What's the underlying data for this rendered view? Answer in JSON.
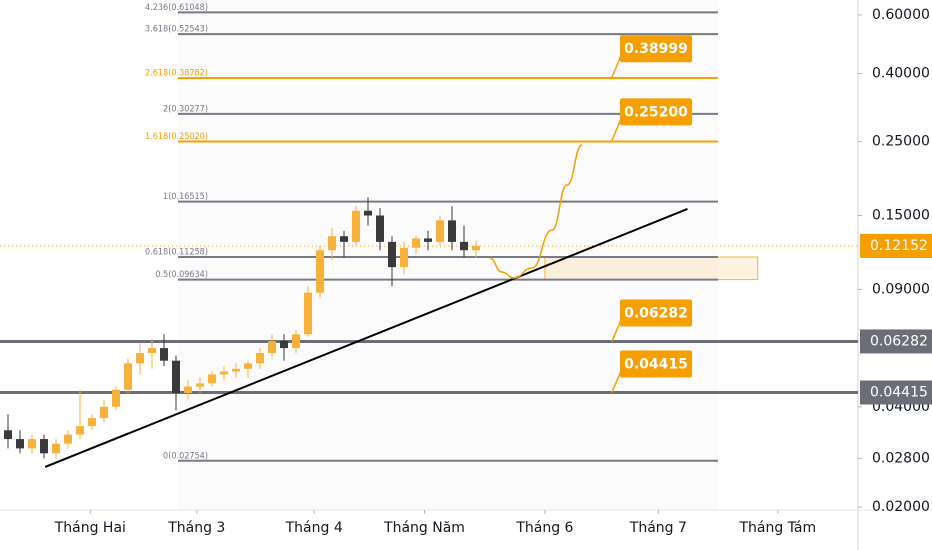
{
  "chart_data": {
    "type": "candlestick",
    "yscale": "log",
    "xlim": [
      -0.67,
      70.58
    ],
    "ylim": [
      0.0196,
      0.665
    ],
    "xticks": [
      {
        "value": 6.83,
        "label": "Tháng Hai"
      },
      {
        "value": 15.67,
        "label": "Tháng 3"
      },
      {
        "value": 25.42,
        "label": "Tháng 4"
      },
      {
        "value": 34.58,
        "label": "Tháng Năm"
      },
      {
        "value": 44.58,
        "label": "Tháng 6"
      },
      {
        "value": 54,
        "label": "Tháng 7"
      },
      {
        "value": 63.92,
        "label": "Tháng Tám"
      }
    ],
    "yticks": [
      {
        "value": 0.6,
        "label": "0.60000"
      },
      {
        "value": 0.4,
        "label": "0.40000"
      },
      {
        "value": 0.25,
        "label": "0.25000"
      },
      {
        "value": 0.15,
        "label": "0.15000"
      },
      {
        "value": 0.09,
        "label": "0.09000"
      },
      {
        "value": 0.04,
        "label": "0.04000"
      },
      {
        "value": 0.028,
        "label": "0.02800"
      },
      {
        "value": 0.02,
        "label": "0.02000"
      }
    ],
    "up_color": "#f7b23b",
    "down_color": "#3a3a3a",
    "candles": {
      "open": [
        0.034,
        0.032,
        0.03,
        0.032,
        0.029,
        0.031,
        0.033,
        0.035,
        0.037,
        0.04,
        0.045,
        0.054,
        0.058,
        0.06,
        0.055,
        0.044,
        0.046,
        0.047,
        0.05,
        0.051,
        0.052,
        0.054,
        0.058,
        0.063,
        0.06,
        0.066,
        0.088,
        0.118,
        0.13,
        0.125,
        0.155,
        0.15,
        0.125,
        0.105,
        0.12,
        0.128,
        0.125,
        0.145,
        0.125,
        0.118
      ],
      "high": [
        0.038,
        0.034,
        0.033,
        0.033,
        0.032,
        0.034,
        0.045,
        0.038,
        0.042,
        0.046,
        0.056,
        0.062,
        0.064,
        0.066,
        0.057,
        0.048,
        0.049,
        0.051,
        0.053,
        0.054,
        0.055,
        0.06,
        0.066,
        0.066,
        0.068,
        0.092,
        0.122,
        0.138,
        0.135,
        0.16,
        0.17,
        0.158,
        0.13,
        0.125,
        0.13,
        0.135,
        0.15,
        0.16,
        0.14,
        0.126
      ],
      "low": [
        0.03,
        0.029,
        0.029,
        0.028,
        0.028,
        0.03,
        0.032,
        0.034,
        0.036,
        0.039,
        0.044,
        0.05,
        0.052,
        0.053,
        0.039,
        0.042,
        0.044,
        0.046,
        0.048,
        0.049,
        0.049,
        0.052,
        0.056,
        0.055,
        0.058,
        0.065,
        0.085,
        0.11,
        0.112,
        0.122,
        0.14,
        0.118,
        0.092,
        0.1,
        0.115,
        0.118,
        0.122,
        0.118,
        0.112,
        0.112
      ],
      "close": [
        0.032,
        0.03,
        0.032,
        0.029,
        0.031,
        0.033,
        0.035,
        0.037,
        0.04,
        0.045,
        0.054,
        0.058,
        0.06,
        0.055,
        0.044,
        0.046,
        0.047,
        0.05,
        0.051,
        0.052,
        0.054,
        0.058,
        0.063,
        0.06,
        0.066,
        0.088,
        0.118,
        0.13,
        0.125,
        0.155,
        0.15,
        0.125,
        0.105,
        0.12,
        0.128,
        0.125,
        0.145,
        0.125,
        0.118,
        0.1215
      ]
    },
    "fib_levels": [
      {
        "label": "4.236(0.61048)",
        "value": 0.61048,
        "color": "#787b86"
      },
      {
        "label": "3.618(0.52543)",
        "value": 0.52543,
        "color": "#787b86"
      },
      {
        "label": "2.618(0.38782)",
        "value": 0.38782,
        "color": "#f59f00"
      },
      {
        "label": "2(0.30277)",
        "value": 0.30277,
        "color": "#787b86"
      },
      {
        "label": "1.618(0.25020)",
        "value": 0.2502,
        "color": "#f59f00"
      },
      {
        "label": "1(0.16515)",
        "value": 0.16515,
        "color": "#787b86"
      },
      {
        "label": "0.618(0.11258)",
        "value": 0.11258,
        "color": "#787b86"
      },
      {
        "label": "0.5(0.09634)",
        "value": 0.09634,
        "color": "#787b86"
      },
      {
        "label": "0(0.02754)",
        "value": 0.02754,
        "color": "#787b86"
      }
    ],
    "hlines": [
      0.06282,
      0.04415
    ],
    "callouts": [
      0.38999,
      {
        "value": 0.252,
        "label": "0.25200"
      },
      0.06282,
      0.04415
    ],
    "callout_color": "#f59f00",
    "price_tags": [
      {
        "value": 0.12152,
        "color": "#f59f00"
      },
      {
        "value": 0.06282,
        "color": "#6b6e78"
      },
      {
        "value": 0.04415,
        "color": "#6b6e78"
      }
    ],
    "current_price": 0.12152,
    "trendline": {
      "x": [
        3.08,
        56.42
      ],
      "y": [
        0.0264,
        0.1569
      ]
    },
    "projection": {
      "x": [
        40,
        41,
        42,
        43.5,
        45.17,
        46.42,
        47.67
      ],
      "y": [
        0.1118,
        0.1015,
        0.0974,
        0.1044,
        0.1357,
        0.1852,
        0.2441
      ]
    },
    "zone": {
      "x": [
        44.58,
        62.25
      ],
      "y": [
        0.09634,
        0.11258
      ]
    }
  }
}
